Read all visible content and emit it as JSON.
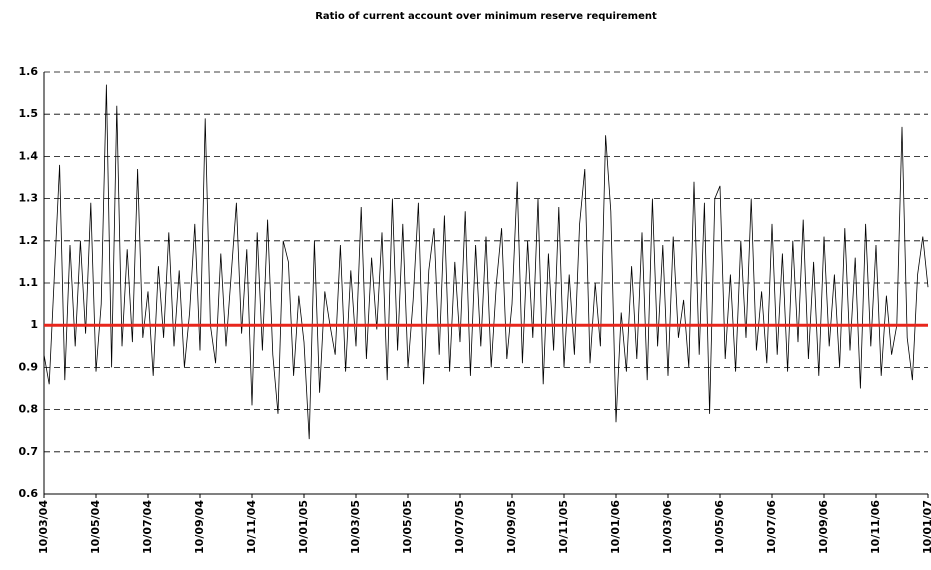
{
  "chart_data": {
    "type": "line",
    "title": "Ratio of current account over minimum reserve requirement",
    "categories": [
      "10/03/04",
      null,
      null,
      null,
      null,
      null,
      null,
      null,
      null,
      null,
      "10/05/04",
      null,
      null,
      null,
      null,
      null,
      null,
      null,
      null,
      null,
      "10/07/04",
      null,
      null,
      null,
      null,
      null,
      null,
      null,
      null,
      null,
      "10/09/04",
      null,
      null,
      null,
      null,
      null,
      null,
      null,
      null,
      null,
      "10/11/04",
      null,
      null,
      null,
      null,
      null,
      null,
      null,
      null,
      null,
      "10/01/05",
      null,
      null,
      null,
      null,
      null,
      null,
      null,
      null,
      null,
      "10/03/05",
      null,
      null,
      null,
      null,
      null,
      null,
      null,
      null,
      null,
      "10/05/05",
      null,
      null,
      null,
      null,
      null,
      null,
      null,
      null,
      null,
      "10/07/05",
      null,
      null,
      null,
      null,
      null,
      null,
      null,
      null,
      null,
      "10/09/05",
      null,
      null,
      null,
      null,
      null,
      null,
      null,
      null,
      null,
      "10/11/05",
      null,
      null,
      null,
      null,
      null,
      null,
      null,
      null,
      null,
      "10/01/06",
      null,
      null,
      null,
      null,
      null,
      null,
      null,
      null,
      null,
      "10/03/06",
      null,
      null,
      null,
      null,
      null,
      null,
      null,
      null,
      null,
      "10/05/06",
      null,
      null,
      null,
      null,
      null,
      null,
      null,
      null,
      null,
      "10/07/06",
      null,
      null,
      null,
      null,
      null,
      null,
      null,
      null,
      null,
      "10/09/06",
      null,
      null,
      null,
      null,
      null,
      null,
      null,
      null,
      null,
      "10/11/06",
      null,
      null,
      null,
      null,
      null,
      null,
      null,
      null,
      null,
      "10/01/07"
    ],
    "series": [
      {
        "color": "#000000",
        "values": [
          0.93,
          0.86,
          1.12,
          1.38,
          0.87,
          1.19,
          0.95,
          1.2,
          0.98,
          1.29,
          0.89,
          1.05,
          1.57,
          0.9,
          1.52,
          0.95,
          1.18,
          0.96,
          1.37,
          0.97,
          1.08,
          0.88,
          1.14,
          0.97,
          1.22,
          0.95,
          1.13,
          0.9,
          1.03,
          1.24,
          0.94,
          1.49,
          1.0,
          0.91,
          1.17,
          0.95,
          1.12,
          1.29,
          0.98,
          1.18,
          0.81,
          1.22,
          0.94,
          1.25,
          0.93,
          0.79,
          1.2,
          1.15,
          0.88,
          1.07,
          0.96,
          0.73,
          1.2,
          0.84,
          1.08,
          1.0,
          0.93,
          1.19,
          0.89,
          1.13,
          0.95,
          1.28,
          0.92,
          1.16,
          0.99,
          1.22,
          0.87,
          1.3,
          0.94,
          1.24,
          0.9,
          1.06,
          1.29,
          0.86,
          1.13,
          1.23,
          0.93,
          1.26,
          0.89,
          1.15,
          0.96,
          1.27,
          0.88,
          1.19,
          0.95,
          1.21,
          0.9,
          1.1,
          1.23,
          0.92,
          1.05,
          1.34,
          0.91,
          1.2,
          0.97,
          1.3,
          0.86,
          1.17,
          0.94,
          1.28,
          0.9,
          1.12,
          0.93,
          1.24,
          1.37,
          0.91,
          1.1,
          0.95,
          1.45,
          1.27,
          0.77,
          1.03,
          0.89,
          1.14,
          0.92,
          1.22,
          0.87,
          1.3,
          0.95,
          1.19,
          0.88,
          1.21,
          0.97,
          1.06,
          0.9,
          1.34,
          0.93,
          1.29,
          0.79,
          1.3,
          1.33,
          0.92,
          1.12,
          0.89,
          1.2,
          0.97,
          1.3,
          0.94,
          1.08,
          0.91,
          1.24,
          0.93,
          1.17,
          0.89,
          1.2,
          0.96,
          1.25,
          0.92,
          1.15,
          0.88,
          1.21,
          0.95,
          1.12,
          0.9,
          1.23,
          0.94,
          1.16,
          0.85,
          1.24,
          0.95,
          1.19,
          0.88,
          1.07,
          0.93,
          1.0,
          1.47,
          0.97,
          0.87,
          1.12,
          1.21,
          1.09
        ]
      }
    ],
    "reference_line": 1,
    "reference_color": "#e8261c",
    "ylim": [
      0.6,
      1.6
    ],
    "yticks": [
      0.6,
      0.7,
      0.8,
      0.9,
      1,
      1.1,
      1.2,
      1.3,
      1.4,
      1.5,
      1.6
    ],
    "grid": true
  }
}
